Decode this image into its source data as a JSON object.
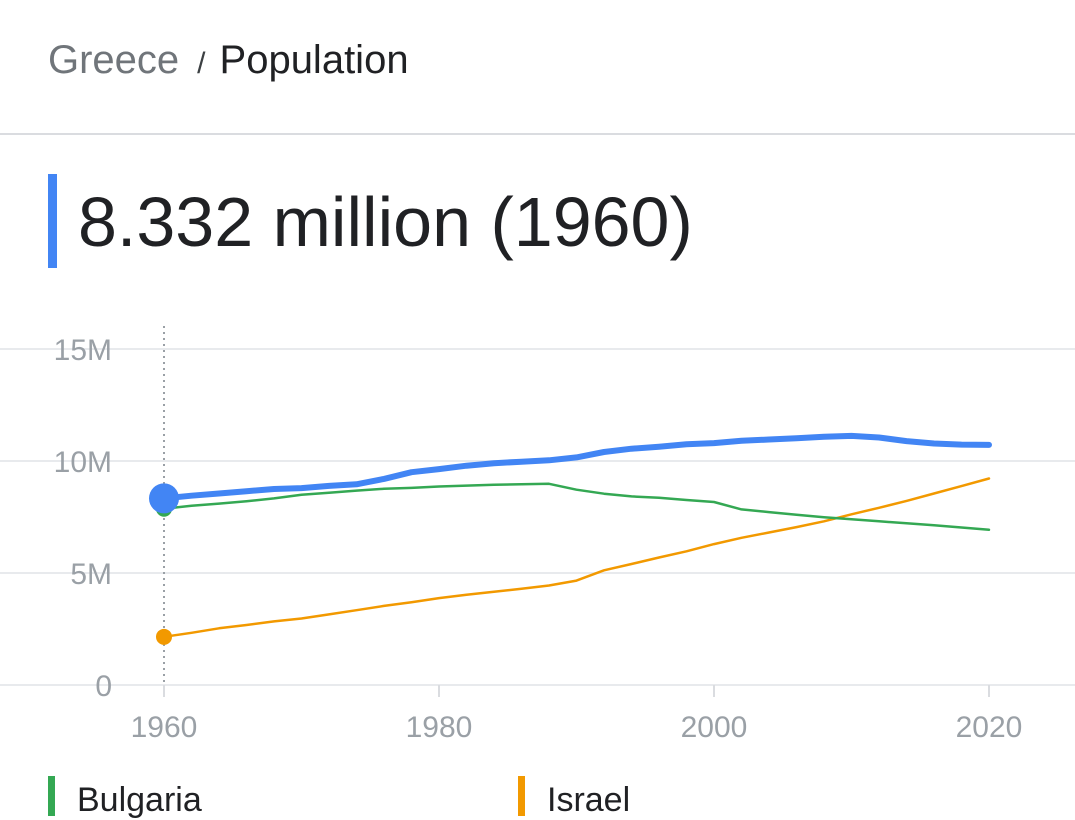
{
  "breadcrumb": {
    "parent": "Greece",
    "separator": "/",
    "current": "Population"
  },
  "headline": {
    "value": "8.332 million (1960)",
    "accent_color": "#4285f4"
  },
  "chart_data": {
    "type": "line",
    "title": "",
    "xlabel": "",
    "ylabel": "",
    "xlim": [
      1960,
      2020
    ],
    "ylim": [
      0,
      15
    ],
    "x_ticks": [
      {
        "value": 1960,
        "label": "1960"
      },
      {
        "value": 1980,
        "label": "1980"
      },
      {
        "value": 2000,
        "label": "2000"
      },
      {
        "value": 2020,
        "label": "2020"
      }
    ],
    "y_ticks": [
      {
        "value": 0,
        "label": "0"
      },
      {
        "value": 5,
        "label": "5M"
      },
      {
        "value": 10,
        "label": "10M"
      },
      {
        "value": 15,
        "label": "15M"
      }
    ],
    "grid": true,
    "cursor_x": 1960,
    "series": [
      {
        "name": "Greece",
        "color": "#4285f4",
        "width": 6,
        "points": [
          [
            1960,
            8.33
          ],
          [
            1962,
            8.45
          ],
          [
            1964,
            8.55
          ],
          [
            1966,
            8.65
          ],
          [
            1968,
            8.75
          ],
          [
            1970,
            8.79
          ],
          [
            1972,
            8.89
          ],
          [
            1974,
            8.96
          ],
          [
            1976,
            9.2
          ],
          [
            1978,
            9.5
          ],
          [
            1980,
            9.64
          ],
          [
            1982,
            9.79
          ],
          [
            1984,
            9.9
          ],
          [
            1986,
            9.97
          ],
          [
            1988,
            10.03
          ],
          [
            1990,
            10.16
          ],
          [
            1992,
            10.4
          ],
          [
            1994,
            10.55
          ],
          [
            1996,
            10.64
          ],
          [
            1998,
            10.75
          ],
          [
            2000,
            10.8
          ],
          [
            2002,
            10.9
          ],
          [
            2004,
            10.96
          ],
          [
            2006,
            11.02
          ],
          [
            2008,
            11.08
          ],
          [
            2010,
            11.12
          ],
          [
            2012,
            11.05
          ],
          [
            2014,
            10.89
          ],
          [
            2016,
            10.78
          ],
          [
            2018,
            10.73
          ],
          [
            2020,
            10.72
          ]
        ]
      },
      {
        "name": "Bulgaria",
        "color": "#34a853",
        "width": 2.5,
        "points": [
          [
            1960,
            7.87
          ],
          [
            1962,
            8.0
          ],
          [
            1964,
            8.1
          ],
          [
            1966,
            8.2
          ],
          [
            1968,
            8.33
          ],
          [
            1970,
            8.49
          ],
          [
            1972,
            8.58
          ],
          [
            1974,
            8.68
          ],
          [
            1976,
            8.76
          ],
          [
            1978,
            8.8
          ],
          [
            1980,
            8.86
          ],
          [
            1982,
            8.9
          ],
          [
            1984,
            8.94
          ],
          [
            1986,
            8.96
          ],
          [
            1988,
            8.98
          ],
          [
            1990,
            8.72
          ],
          [
            1992,
            8.54
          ],
          [
            1994,
            8.42
          ],
          [
            1996,
            8.36
          ],
          [
            1998,
            8.26
          ],
          [
            2000,
            8.17
          ],
          [
            2002,
            7.84
          ],
          [
            2004,
            7.72
          ],
          [
            2006,
            7.6
          ],
          [
            2008,
            7.49
          ],
          [
            2010,
            7.4
          ],
          [
            2012,
            7.31
          ],
          [
            2014,
            7.22
          ],
          [
            2016,
            7.13
          ],
          [
            2018,
            7.03
          ],
          [
            2020,
            6.93
          ]
        ]
      },
      {
        "name": "Israel",
        "color": "#f29900",
        "width": 2.5,
        "points": [
          [
            1960,
            2.15
          ],
          [
            1962,
            2.33
          ],
          [
            1964,
            2.53
          ],
          [
            1966,
            2.68
          ],
          [
            1968,
            2.84
          ],
          [
            1970,
            2.97
          ],
          [
            1972,
            3.15
          ],
          [
            1974,
            3.34
          ],
          [
            1976,
            3.53
          ],
          [
            1978,
            3.69
          ],
          [
            1980,
            3.88
          ],
          [
            1982,
            4.03
          ],
          [
            1984,
            4.16
          ],
          [
            1986,
            4.3
          ],
          [
            1988,
            4.44
          ],
          [
            1990,
            4.66
          ],
          [
            1992,
            5.12
          ],
          [
            1994,
            5.4
          ],
          [
            1996,
            5.69
          ],
          [
            1998,
            5.97
          ],
          [
            2000,
            6.29
          ],
          [
            2002,
            6.57
          ],
          [
            2004,
            6.81
          ],
          [
            2006,
            7.05
          ],
          [
            2008,
            7.31
          ],
          [
            2010,
            7.62
          ],
          [
            2012,
            7.91
          ],
          [
            2014,
            8.22
          ],
          [
            2016,
            8.55
          ],
          [
            2018,
            8.88
          ],
          [
            2020,
            9.22
          ]
        ]
      }
    ]
  },
  "legend": {
    "items": [
      {
        "label": "Bulgaria",
        "color": "#34a853"
      },
      {
        "label": "Israel",
        "color": "#f29900"
      }
    ]
  }
}
